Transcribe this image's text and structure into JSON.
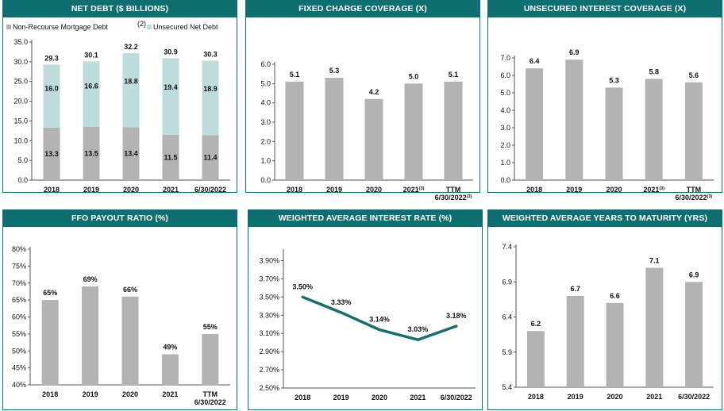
{
  "colors": {
    "header": "#0f6e6f",
    "bar": "#b3b3b3",
    "bar_light": "#bfdcdc",
    "line": "#14706f",
    "axis": "#555555"
  },
  "chart_data": [
    {
      "id": "net-debt",
      "type": "bar",
      "stacked": true,
      "title": "NET DEBT ($ BILLIONS)",
      "categories": [
        "2018",
        "2019",
        "2020",
        "2021",
        "6/30/2022"
      ],
      "series": [
        {
          "name": "Non-Recourse Mortgage Debt",
          "values": [
            13.3,
            13.5,
            13.4,
            11.5,
            11.4
          ],
          "labels": [
            "13.3",
            "13.5",
            "13.4",
            "11.5",
            "11.4"
          ]
        },
        {
          "name": "Unsecured Net Debt",
          "values": [
            16.0,
            16.6,
            18.8,
            19.4,
            18.9
          ],
          "labels": [
            "16.0",
            "16.6",
            "18.8",
            "19.4",
            "18.9"
          ]
        }
      ],
      "totals": [
        "29.3",
        "30.1",
        "32.2",
        "30.9",
        "30.3"
      ],
      "legend_note": "(2)",
      "ylim": [
        0,
        35
      ],
      "yticks": [
        0,
        5,
        10,
        15,
        20,
        25,
        30,
        35
      ],
      "ytick_labels": [
        "0.0",
        "5.0",
        "10.0",
        "15.0",
        "20.0",
        "25.0",
        "30.0",
        "35.0"
      ]
    },
    {
      "id": "fixed-charge",
      "type": "bar",
      "title": "FIXED CHARGE COVERAGE (X)",
      "categories": [
        "2018",
        "2019",
        "2020",
        "2021",
        "TTM"
      ],
      "categories_line2": [
        "",
        "",
        "",
        "",
        "6/30/2022"
      ],
      "footnotes": [
        "",
        "",
        "",
        "(3)",
        "(3)"
      ],
      "values": [
        5.1,
        5.3,
        4.2,
        5.0,
        5.1
      ],
      "labels": [
        "5.1",
        "5.3",
        "4.2",
        "5.0",
        "5.1"
      ],
      "ylim": [
        0,
        6
      ],
      "yticks": [
        0,
        1,
        2,
        3,
        4,
        5,
        6
      ],
      "ytick_labels": [
        "0.0",
        "1.0",
        "2.0",
        "3.0",
        "4.0",
        "5.0",
        "6.0"
      ]
    },
    {
      "id": "unsecured-interest",
      "type": "bar",
      "title": "UNSECURED INTEREST COVERAGE (X)",
      "categories": [
        "2018",
        "2019",
        "2020",
        "2021",
        "TTM"
      ],
      "categories_line2": [
        "",
        "",
        "",
        "",
        "6/30/2022"
      ],
      "footnotes": [
        "",
        "",
        "",
        "(3)",
        "(3)"
      ],
      "values": [
        6.4,
        6.9,
        5.3,
        5.8,
        5.6
      ],
      "labels": [
        "6.4",
        "6.9",
        "5.3",
        "5.8",
        "5.6"
      ],
      "ylim": [
        0,
        7
      ],
      "yticks": [
        0,
        1,
        2,
        3,
        4,
        5,
        6,
        7
      ],
      "ytick_labels": [
        "0.0",
        "1.0",
        "2.0",
        "3.0",
        "4.0",
        "5.0",
        "6.0",
        "7.0"
      ]
    },
    {
      "id": "ffo-payout",
      "type": "bar",
      "title": "FFO PAYOUT RATIO (%)",
      "categories": [
        "2018",
        "2019",
        "2020",
        "2021",
        "TTM"
      ],
      "categories_line2": [
        "",
        "",
        "",
        "",
        "6/30/2022"
      ],
      "footnotes": [
        "",
        "",
        "",
        "",
        ""
      ],
      "values": [
        65,
        69,
        66,
        49,
        55
      ],
      "labels": [
        "65%",
        "69%",
        "66%",
        "49%",
        "55%"
      ],
      "ylim": [
        40,
        80
      ],
      "yticks": [
        40,
        45,
        50,
        55,
        60,
        65,
        70,
        75,
        80
      ],
      "ytick_labels": [
        "40%",
        "45%",
        "50%",
        "55%",
        "60%",
        "65%",
        "70%",
        "75%",
        "80%"
      ]
    },
    {
      "id": "interest-rate",
      "type": "line",
      "title": "WEIGHTED AVERAGE INTEREST RATE (%)",
      "categories": [
        "2018",
        "2019",
        "2020",
        "2021",
        "6/30/2022"
      ],
      "values": [
        3.5,
        3.33,
        3.14,
        3.03,
        3.18
      ],
      "labels": [
        "3.50%",
        "3.33%",
        "3.14%",
        "3.03%",
        "3.18%"
      ],
      "ylim": [
        2.5,
        4.0
      ],
      "yticks": [
        2.5,
        2.7,
        2.9,
        3.1,
        3.3,
        3.5,
        3.7,
        3.9
      ],
      "ytick_labels": [
        "2.50%",
        "2.70%",
        "2.90%",
        "3.10%",
        "3.30%",
        "3.50%",
        "3.70%",
        "3.90%"
      ]
    },
    {
      "id": "years-maturity",
      "type": "bar",
      "title": "WEIGHTED AVERAGE YEARS TO MATURITY (YRS)",
      "categories": [
        "2018",
        "2019",
        "2020",
        "2021",
        "6/30/2022"
      ],
      "values": [
        6.2,
        6.7,
        6.6,
        7.1,
        6.9
      ],
      "labels": [
        "6.2",
        "6.7",
        "6.6",
        "7.1",
        "6.9"
      ],
      "ylim": [
        5.4,
        7.4
      ],
      "yticks": [
        5.4,
        5.9,
        6.4,
        6.9,
        7.4
      ],
      "ytick_labels": [
        "5.4",
        "5.9",
        "6.4",
        "6.9",
        "7.4"
      ]
    }
  ]
}
